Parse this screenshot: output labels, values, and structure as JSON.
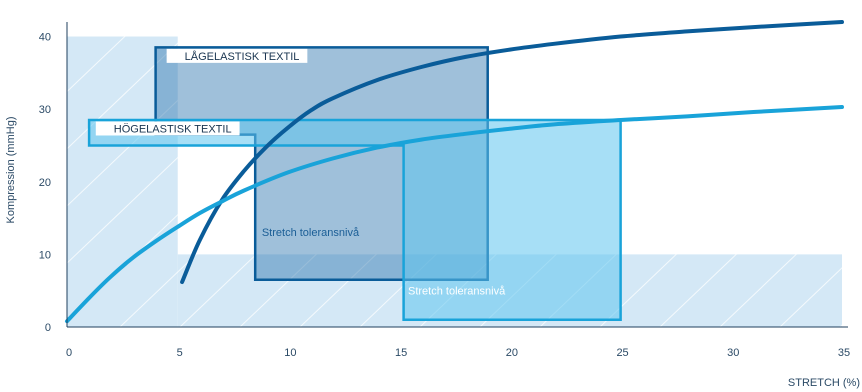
{
  "chart_data": {
    "type": "line",
    "xlabel": "STRETCH (%)",
    "ylabel": "Kompression (mmHg)",
    "xlim": [
      0,
      35
    ],
    "ylim": [
      0,
      42
    ],
    "x_ticks": [
      "0",
      "5",
      "10",
      "15",
      "20",
      "25",
      "30",
      "35"
    ],
    "y_ticks": [
      "0",
      "10",
      "20",
      "30",
      "40"
    ],
    "series": [
      {
        "id": "low_elastic",
        "color": "#0a5c99",
        "x": [
          5.2,
          6,
          7,
          8,
          9,
          10,
          11,
          12,
          14,
          16,
          18,
          20,
          22,
          25,
          28,
          31,
          35
        ],
        "y": [
          6.2,
          12,
          17.5,
          21.5,
          24.8,
          27.5,
          29.8,
          31.5,
          34,
          35.8,
          37.2,
          38.2,
          39,
          40,
          40.7,
          41.3,
          42
        ]
      },
      {
        "id": "high_elastic",
        "color": "#19a3d9",
        "x": [
          0,
          1,
          2,
          3,
          4,
          5,
          6,
          7,
          8,
          10,
          12,
          14,
          16,
          18,
          20,
          22,
          25,
          28,
          31,
          35
        ],
        "y": [
          0.8,
          4,
          7,
          9.6,
          11.8,
          13.8,
          15.7,
          17.3,
          18.8,
          21.3,
          23.2,
          24.7,
          25.8,
          26.6,
          27.3,
          27.9,
          28.5,
          29,
          29.6,
          30.3
        ]
      }
    ],
    "regions": [
      {
        "id": "band_left",
        "x": [
          0,
          5
        ],
        "y": [
          0,
          40
        ],
        "color": "#d4e8f6"
      },
      {
        "id": "band_bottom",
        "x": [
          5,
          35
        ],
        "y": [
          0,
          10
        ],
        "color": "#d4e8f6"
      }
    ],
    "boxes": [
      {
        "id": "low_box",
        "tag": "LÅGELASTISK TEXTIL",
        "label": "Stretch toleransnivå",
        "fill": "#2a73ad",
        "fill_opacity": 0.45,
        "stroke": "#0a5c99",
        "label_color": "#1b5e96",
        "points": [
          [
            4,
            38.5
          ],
          [
            19,
            38.5
          ],
          [
            19,
            6.5
          ],
          [
            8.5,
            6.5
          ],
          [
            8.5,
            26.5
          ],
          [
            4,
            26.5
          ]
        ],
        "label_at": [
          8.8,
          12.5
        ],
        "tag_at": [
          4.5,
          38.3
        ]
      },
      {
        "id": "high_box",
        "tag": "HÖGELASTISK TEXTIL",
        "label": "Stretch toleransnivå",
        "fill": "#5ec4ef",
        "fill_opacity": 0.55,
        "stroke": "#19a3d9",
        "label_color": "#ffffff",
        "points": [
          [
            1,
            28.5
          ],
          [
            25,
            28.5
          ],
          [
            25,
            1
          ],
          [
            15.2,
            1
          ],
          [
            15.2,
            25
          ],
          [
            1,
            25
          ]
        ],
        "label_at": [
          15.4,
          4.5
        ],
        "tag_at": [
          1.3,
          28.3
        ]
      }
    ]
  }
}
